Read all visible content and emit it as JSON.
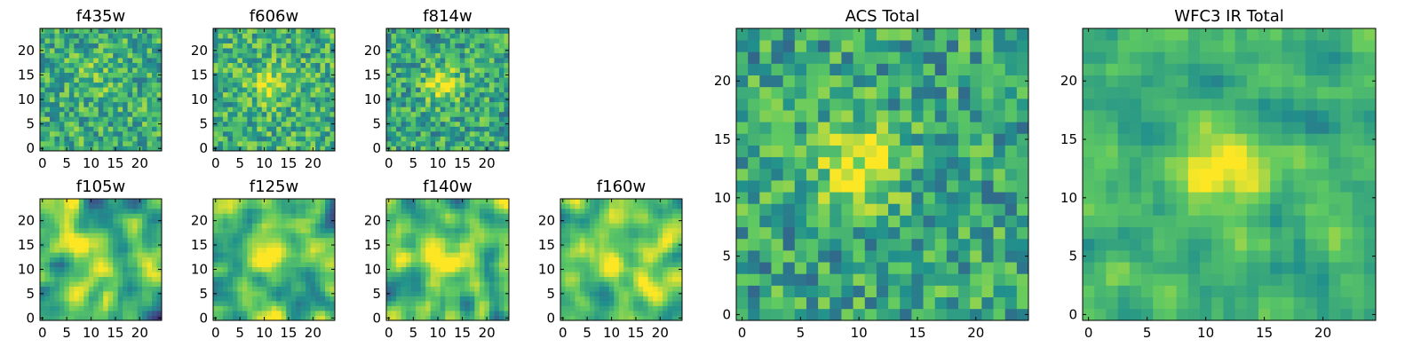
{
  "colormap": {
    "name": "viridis",
    "stops": [
      "#440154",
      "#3b528b",
      "#21918c",
      "#5ec962",
      "#fde725"
    ]
  },
  "chart_data": [
    {
      "type": "heatmap",
      "title": "f435w",
      "grid_size": 25,
      "xlim": [
        -0.5,
        24.5
      ],
      "ylim": [
        -0.5,
        24.5
      ],
      "xticks": [
        0,
        5,
        10,
        15,
        20
      ],
      "yticks": [
        0,
        5,
        10,
        15,
        20
      ],
      "grid": false,
      "cmap": "viridis"
    },
    {
      "type": "heatmap",
      "title": "f606w",
      "grid_size": 25,
      "xlim": [
        -0.5,
        24.5
      ],
      "ylim": [
        -0.5,
        24.5
      ],
      "xticks": [
        0,
        5,
        10,
        15,
        20
      ],
      "yticks": [
        0,
        5,
        10,
        15,
        20
      ],
      "grid": false,
      "cmap": "viridis"
    },
    {
      "type": "heatmap",
      "title": "f814w",
      "grid_size": 25,
      "xlim": [
        -0.5,
        24.5
      ],
      "ylim": [
        -0.5,
        24.5
      ],
      "xticks": [
        0,
        5,
        10,
        15,
        20
      ],
      "yticks": [
        0,
        5,
        10,
        15,
        20
      ],
      "grid": false,
      "cmap": "viridis"
    },
    {
      "type": "heatmap",
      "title": "f105w",
      "grid_size": 25,
      "xlim": [
        -0.5,
        24.5
      ],
      "ylim": [
        -0.5,
        24.5
      ],
      "xticks": [
        0,
        5,
        10,
        15,
        20
      ],
      "yticks": [
        0,
        5,
        10,
        15,
        20
      ],
      "grid": false,
      "cmap": "viridis"
    },
    {
      "type": "heatmap",
      "title": "f125w",
      "grid_size": 25,
      "xlim": [
        -0.5,
        24.5
      ],
      "ylim": [
        -0.5,
        24.5
      ],
      "xticks": [
        0,
        5,
        10,
        15,
        20
      ],
      "yticks": [
        0,
        5,
        10,
        15,
        20
      ],
      "grid": false,
      "cmap": "viridis"
    },
    {
      "type": "heatmap",
      "title": "f140w",
      "grid_size": 25,
      "xlim": [
        -0.5,
        24.5
      ],
      "ylim": [
        -0.5,
        24.5
      ],
      "xticks": [
        0,
        5,
        10,
        15,
        20
      ],
      "yticks": [
        0,
        5,
        10,
        15,
        20
      ],
      "grid": false,
      "cmap": "viridis"
    },
    {
      "type": "heatmap",
      "title": "f160w",
      "grid_size": 25,
      "xlim": [
        -0.5,
        24.5
      ],
      "ylim": [
        -0.5,
        24.5
      ],
      "xticks": [
        0,
        5,
        10,
        15,
        20
      ],
      "yticks": [
        0,
        5,
        10,
        15,
        20
      ],
      "grid": false,
      "cmap": "viridis"
    },
    {
      "type": "heatmap",
      "title": "ACS Total",
      "grid_size": 25,
      "xlim": [
        -0.5,
        24.5
      ],
      "ylim": [
        -0.5,
        24.5
      ],
      "xticks": [
        0,
        5,
        10,
        15,
        20
      ],
      "yticks": [
        0,
        5,
        10,
        15,
        20
      ],
      "grid": false,
      "cmap": "viridis"
    },
    {
      "type": "heatmap",
      "title": "WFC3 IR Total",
      "grid_size": 25,
      "xlim": [
        -0.5,
        24.5
      ],
      "ylim": [
        -0.5,
        24.5
      ],
      "xticks": [
        0,
        5,
        10,
        15,
        20
      ],
      "yticks": [
        0,
        5,
        10,
        15,
        20
      ],
      "grid": false,
      "cmap": "viridis"
    }
  ]
}
